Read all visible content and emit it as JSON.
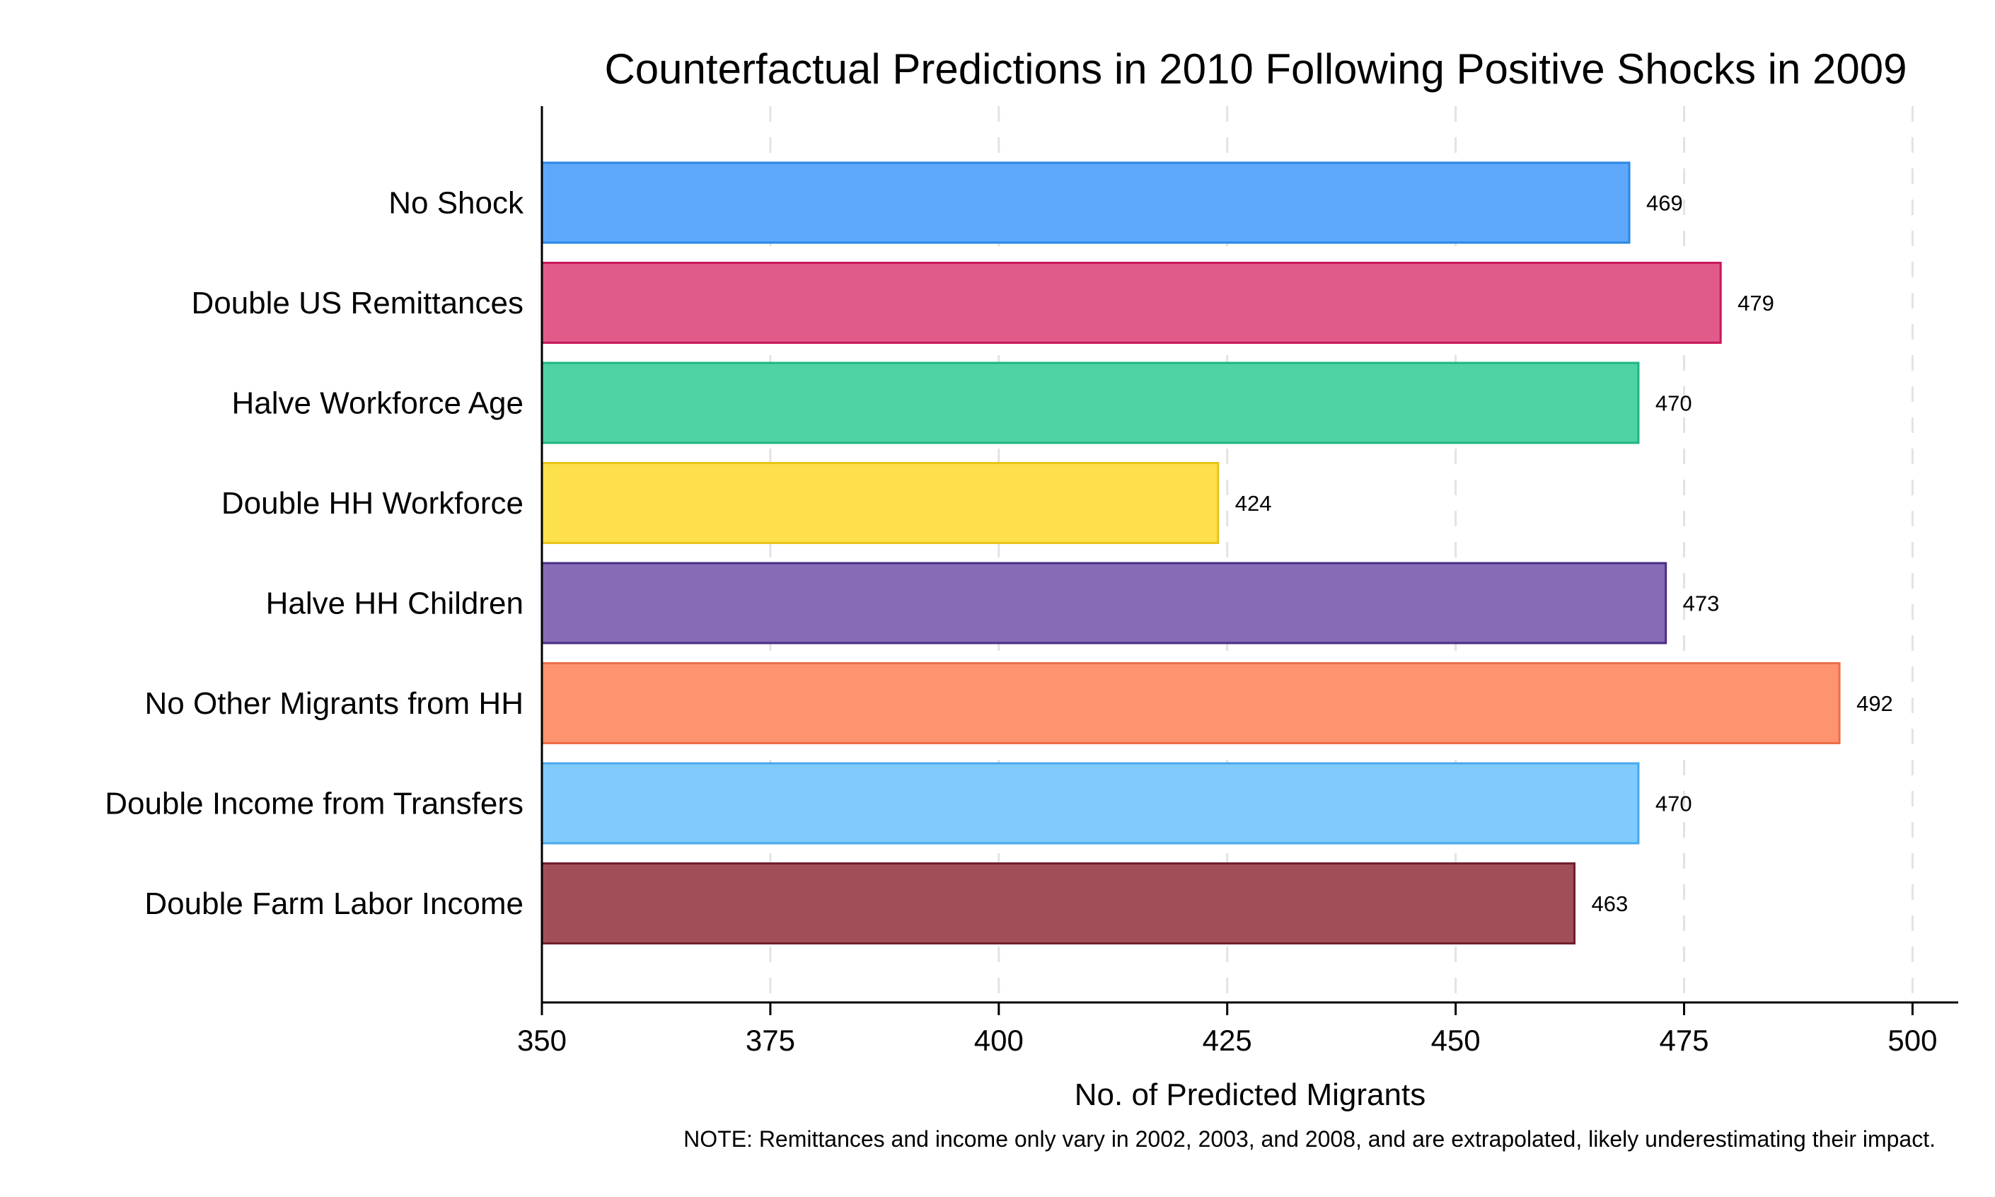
{
  "chart_data": {
    "type": "bar",
    "orientation": "horizontal",
    "title": "Counterfactual Predictions in 2010 Following Positive Shocks in 2009",
    "xlabel": "No. of Predicted Migrants",
    "ylabel": "",
    "xlim": [
      350,
      505
    ],
    "xticks": [
      350,
      375,
      400,
      425,
      450,
      475,
      500
    ],
    "grid": true,
    "categories": [
      "No Shock",
      "Double US Remittances",
      "Halve Workforce Age",
      "Double HH Workforce",
      "Halve HH Children",
      "No Other Migrants from HH",
      "Double Income from Transfers",
      "Double Farm Labor Income"
    ],
    "values": [
      469,
      479,
      470,
      424,
      473,
      492,
      470,
      463
    ],
    "data_labels": [
      "469",
      "479",
      "470",
      "424",
      "473",
      "492",
      "470",
      "463"
    ],
    "colors": [
      "#5ea8fc",
      "#e05a8a",
      "#4fd2a4",
      "#fde04b",
      "#866cb6",
      "#fe9370",
      "#80cafd",
      "#a24e59"
    ],
    "edge_colors": [
      "#2a87e4",
      "#c8185a",
      "#1fb57f",
      "#e8c41a",
      "#4b2d86",
      "#ec6e48",
      "#48a9ed",
      "#6e1e2c"
    ],
    "note": "NOTE: Remittances and income only vary in 2002, 2003, and 2008, and are extrapolated, likely underestimating their impact."
  }
}
